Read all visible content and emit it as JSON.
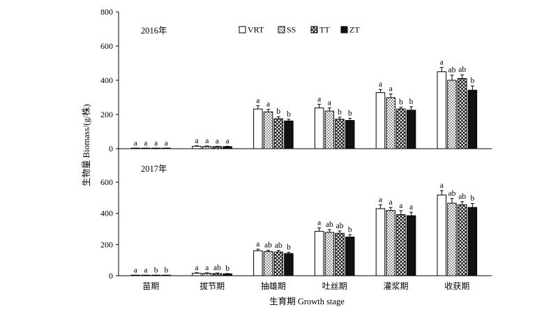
{
  "chart_data": {
    "type": "bar",
    "xlabel": "生育期 Growth stage",
    "ylabel": "生物量 Biomass/(g/株)",
    "categories": [
      "苗期",
      "拔节期",
      "抽雄期",
      "吐丝期",
      "灌浆期",
      "收获期"
    ],
    "legend": {
      "placement": "top-center",
      "entries": [
        {
          "name": "VRT",
          "pattern": "white"
        },
        {
          "name": "SS",
          "pattern": "dots"
        },
        {
          "name": "TT",
          "pattern": "crosshatch"
        },
        {
          "name": "ZT",
          "pattern": "black"
        }
      ]
    },
    "panels": [
      {
        "year_label": "2016年",
        "ylim": [
          0,
          800
        ],
        "yticks": [
          0,
          200,
          400,
          600,
          800
        ],
        "series": [
          {
            "name": "VRT",
            "values": [
              2,
              14,
              232,
              238,
              328,
              450
            ],
            "errors": [
              1,
              3,
              20,
              22,
              18,
              25
            ],
            "letters": [
              "a",
              "a",
              "a",
              "a",
              "a",
              "a"
            ]
          },
          {
            "name": "SS",
            "values": [
              2,
              13,
              215,
              220,
              298,
              400
            ],
            "errors": [
              1,
              3,
              15,
              18,
              22,
              30
            ],
            "letters": [
              "a",
              "a",
              "a",
              "a",
              "a",
              "ab"
            ]
          },
          {
            "name": "TT",
            "values": [
              2,
              12,
              175,
              172,
              232,
              410
            ],
            "errors": [
              1,
              2,
              12,
              12,
              10,
              22
            ],
            "letters": [
              "a",
              "a",
              "b",
              "b",
              "b",
              "ab"
            ]
          },
          {
            "name": "ZT",
            "values": [
              2,
              12,
              162,
              165,
              225,
              342
            ],
            "errors": [
              1,
              2,
              10,
              12,
              20,
              25
            ],
            "letters": [
              "a",
              "a",
              "b",
              "b",
              "b",
              "b"
            ]
          }
        ]
      },
      {
        "year_label": "2017年",
        "ylim": [
          0,
          600
        ],
        "yticks": [
          0,
          200,
          400,
          600
        ],
        "series": [
          {
            "name": "VRT",
            "values": [
              2,
              16,
              160,
              285,
              430,
              518
            ],
            "errors": [
              1,
              3,
              10,
              22,
              25,
              28
            ],
            "letters": [
              "a",
              "a",
              "a",
              "a",
              "a",
              "a"
            ]
          },
          {
            "name": "SS",
            "values": [
              2,
              15,
              155,
              278,
              418,
              465
            ],
            "errors": [
              1,
              3,
              8,
              18,
              20,
              30
            ],
            "letters": [
              "a",
              "a",
              "ab",
              "ab",
              "a",
              "ab"
            ]
          },
          {
            "name": "TT",
            "values": [
              2,
              14,
              152,
              272,
              392,
              455
            ],
            "errors": [
              1,
              3,
              10,
              15,
              25,
              20
            ],
            "letters": [
              "b",
              "ab",
              "ab",
              "ab",
              "a",
              "ab"
            ]
          },
          {
            "name": "ZT",
            "values": [
              2,
              12,
              142,
              248,
              385,
              438
            ],
            "errors": [
              1,
              2,
              8,
              15,
              22,
              25
            ],
            "letters": [
              "b",
              "b",
              "b",
              "b",
              "a",
              "b"
            ]
          }
        ]
      }
    ]
  }
}
